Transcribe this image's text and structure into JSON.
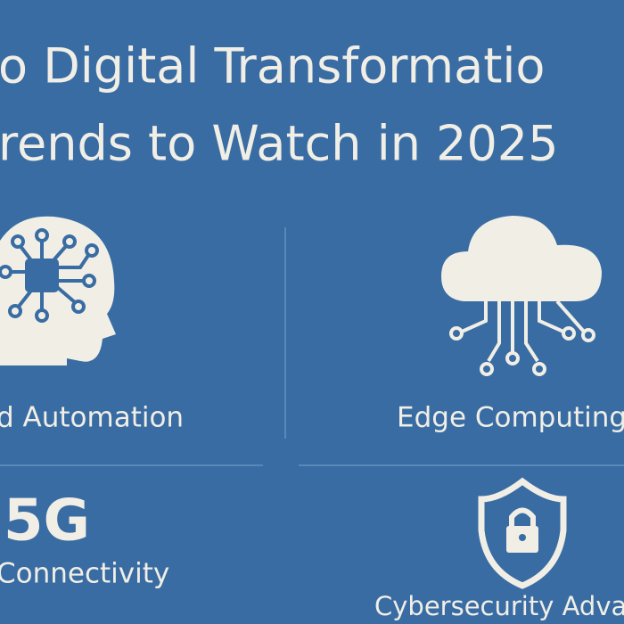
{
  "header": {
    "title_lines": [
      "o Digital Transformatio",
      "rends to Watch in 2025"
    ]
  },
  "panels": [
    {
      "label": "d Automation"
    },
    {
      "label": "Edge Computing"
    },
    {
      "heading": "5G",
      "label": "Connectivity"
    },
    {
      "label": "Cybersecurity Adva"
    }
  ]
}
